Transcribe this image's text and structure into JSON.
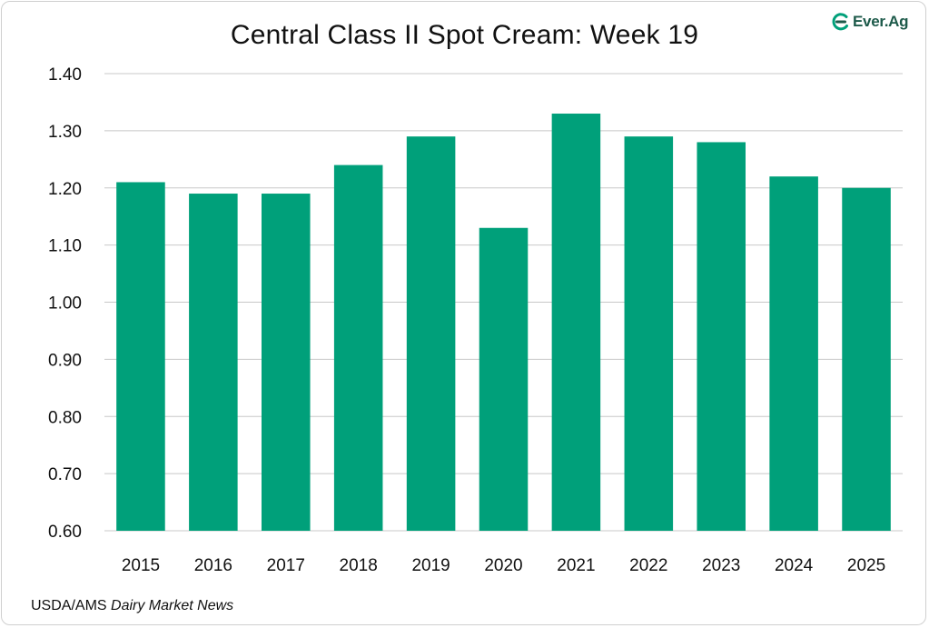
{
  "logo": {
    "icon": "ever-ag-logo-icon",
    "text": "Ever.Ag",
    "color": "#1d5a4a"
  },
  "source": {
    "prefix": "USDA/AMS ",
    "italic": "Dairy Market News"
  },
  "chart_data": {
    "type": "bar",
    "title": "Central Class II Spot Cream: Week 19",
    "xlabel": "",
    "ylabel": "",
    "categories": [
      "2015",
      "2016",
      "2017",
      "2018",
      "2019",
      "2020",
      "2021",
      "2022",
      "2023",
      "2024",
      "2025"
    ],
    "values": [
      1.21,
      1.19,
      1.19,
      1.24,
      1.29,
      1.13,
      1.33,
      1.29,
      1.28,
      1.22,
      1.2
    ],
    "ylim": [
      0.6,
      1.4
    ],
    "yticks": [
      "0.60",
      "0.70",
      "0.80",
      "0.90",
      "1.00",
      "1.10",
      "1.20",
      "1.30",
      "1.40"
    ],
    "bar_color": "#00a07a",
    "grid": true,
    "legend": "none"
  }
}
